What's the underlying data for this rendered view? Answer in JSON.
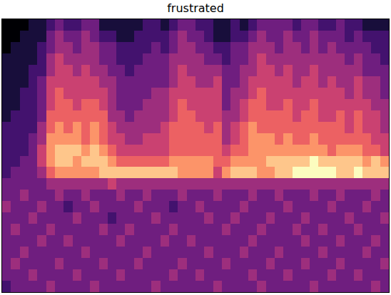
{
  "chart_data": {
    "type": "heatmap",
    "title": "frustrated",
    "tick_labels": false,
    "cells": [
      [
        0,
        0,
        0,
        1,
        1,
        2,
        3,
        2,
        2,
        3,
        3,
        1,
        1,
        1,
        1,
        1,
        2,
        2,
        1,
        2,
        3,
        3,
        2,
        2,
        1,
        1,
        2,
        1,
        2,
        3,
        3,
        3,
        3,
        2,
        3,
        3,
        2,
        2,
        3,
        2,
        2,
        1,
        1,
        1
      ],
      [
        0,
        0,
        1,
        1,
        1,
        3,
        4,
        3,
        3,
        4,
        3,
        2,
        2,
        1,
        1,
        2,
        2,
        2,
        2,
        3,
        4,
        3,
        3,
        2,
        1,
        1,
        2,
        2,
        3,
        4,
        3,
        3,
        4,
        3,
        3,
        4,
        3,
        3,
        3,
        2,
        3,
        2,
        2,
        2
      ],
      [
        0,
        1,
        1,
        1,
        2,
        3,
        4,
        4,
        3,
        4,
        4,
        3,
        3,
        2,
        2,
        2,
        2,
        3,
        2,
        3,
        4,
        4,
        3,
        3,
        2,
        2,
        3,
        3,
        4,
        4,
        4,
        3,
        4,
        4,
        3,
        4,
        3,
        4,
        3,
        3,
        3,
        3,
        2,
        2
      ],
      [
        1,
        1,
        1,
        1,
        2,
        4,
        5,
        4,
        4,
        4,
        4,
        3,
        3,
        2,
        2,
        2,
        3,
        3,
        3,
        4,
        4,
        4,
        4,
        3,
        3,
        2,
        3,
        3,
        4,
        5,
        4,
        4,
        4,
        4,
        4,
        4,
        4,
        4,
        4,
        3,
        4,
        3,
        3,
        2
      ],
      [
        1,
        1,
        1,
        2,
        2,
        4,
        5,
        5,
        4,
        5,
        4,
        4,
        3,
        3,
        2,
        3,
        3,
        3,
        3,
        4,
        5,
        4,
        4,
        4,
        4,
        3,
        3,
        4,
        4,
        5,
        5,
        4,
        5,
        4,
        4,
        5,
        4,
        4,
        4,
        4,
        4,
        3,
        3,
        3
      ],
      [
        1,
        1,
        1,
        2,
        3,
        5,
        5,
        5,
        5,
        5,
        5,
        4,
        4,
        3,
        3,
        3,
        3,
        3,
        3,
        4,
        5,
        5,
        4,
        4,
        5,
        3,
        3,
        4,
        5,
        5,
        5,
        5,
        5,
        4,
        5,
        5,
        4,
        5,
        4,
        4,
        5,
        4,
        4,
        3
      ],
      [
        1,
        1,
        2,
        2,
        3,
        5,
        6,
        5,
        5,
        5,
        5,
        5,
        4,
        3,
        3,
        3,
        3,
        4,
        4,
        5,
        5,
        5,
        5,
        5,
        5,
        3,
        4,
        4,
        5,
        6,
        5,
        5,
        5,
        5,
        5,
        5,
        5,
        5,
        5,
        4,
        5,
        4,
        4,
        3
      ],
      [
        1,
        1,
        2,
        2,
        3,
        5,
        6,
        6,
        5,
        6,
        6,
        5,
        4,
        3,
        3,
        3,
        4,
        4,
        4,
        5,
        6,
        5,
        5,
        5,
        5,
        3,
        4,
        5,
        6,
        6,
        5,
        5,
        6,
        5,
        5,
        6,
        5,
        5,
        5,
        5,
        5,
        5,
        4,
        4
      ],
      [
        1,
        2,
        2,
        2,
        3,
        6,
        6,
        6,
        6,
        6,
        6,
        6,
        4,
        4,
        3,
        4,
        4,
        4,
        4,
        5,
        6,
        6,
        5,
        5,
        5,
        4,
        4,
        5,
        6,
        6,
        6,
        6,
        6,
        5,
        6,
        6,
        5,
        5,
        6,
        5,
        6,
        5,
        5,
        4
      ],
      [
        2,
        2,
        2,
        2,
        4,
        6,
        7,
        6,
        7,
        6,
        7,
        6,
        5,
        4,
        4,
        4,
        4,
        4,
        5,
        6,
        6,
        6,
        6,
        5,
        6,
        4,
        5,
        6,
        7,
        6,
        6,
        6,
        6,
        6,
        6,
        6,
        6,
        6,
        6,
        5,
        6,
        5,
        5,
        4
      ],
      [
        2,
        2,
        2,
        3,
        4,
        7,
        7,
        7,
        7,
        6,
        7,
        6,
        5,
        5,
        4,
        4,
        5,
        5,
        5,
        6,
        6,
        6,
        6,
        6,
        6,
        4,
        5,
        6,
        7,
        7,
        7,
        6,
        7,
        6,
        6,
        7,
        6,
        6,
        6,
        6,
        6,
        6,
        5,
        5
      ],
      [
        2,
        2,
        2,
        3,
        5,
        7,
        8,
        8,
        8,
        7,
        8,
        7,
        6,
        5,
        5,
        5,
        5,
        5,
        5,
        6,
        6,
        6,
        6,
        6,
        6,
        5,
        6,
        6,
        7,
        7,
        7,
        7,
        7,
        7,
        7,
        7,
        7,
        6,
        7,
        7,
        7,
        6,
        6,
        5
      ],
      [
        2,
        2,
        3,
        3,
        5,
        7,
        8,
        8,
        7,
        8,
        8,
        8,
        7,
        6,
        6,
        6,
        6,
        6,
        6,
        7,
        7,
        7,
        7,
        7,
        6,
        6,
        7,
        7,
        7,
        7,
        8,
        8,
        8,
        8,
        8,
        9,
        8,
        8,
        8,
        8,
        8,
        7,
        8,
        7
      ],
      [
        2,
        3,
        3,
        3,
        4,
        6,
        7,
        7,
        7,
        7,
        7,
        8,
        8,
        8,
        8,
        8,
        8,
        8,
        8,
        8,
        7,
        7,
        7,
        7,
        5,
        7,
        8,
        8,
        8,
        7,
        7,
        8,
        8,
        9,
        9,
        9,
        9,
        9,
        8,
        8,
        9,
        8,
        8,
        8
      ],
      [
        3,
        3,
        3,
        3,
        3,
        4,
        4,
        4,
        4,
        4,
        4,
        4,
        5,
        4,
        4,
        4,
        4,
        4,
        4,
        4,
        4,
        4,
        4,
        4,
        4,
        4,
        4,
        4,
        4,
        4,
        4,
        4,
        4,
        4,
        4,
        4,
        4,
        4,
        4,
        4,
        4,
        4,
        4,
        4
      ],
      [
        3,
        3,
        4,
        3,
        3,
        3,
        4,
        3,
        3,
        4,
        3,
        3,
        3,
        4,
        3,
        3,
        4,
        3,
        3,
        3,
        4,
        3,
        3,
        3,
        4,
        3,
        3,
        3,
        4,
        3,
        3,
        4,
        3,
        3,
        3,
        4,
        3,
        3,
        4,
        3,
        3,
        3,
        4,
        3
      ],
      [
        4,
        3,
        3,
        3,
        4,
        3,
        3,
        2,
        3,
        3,
        4,
        3,
        3,
        3,
        3,
        4,
        3,
        3,
        3,
        2,
        3,
        3,
        4,
        3,
        3,
        3,
        3,
        4,
        3,
        3,
        3,
        3,
        4,
        3,
        3,
        3,
        3,
        4,
        3,
        3,
        3,
        4,
        3,
        3
      ],
      [
        3,
        3,
        3,
        4,
        3,
        3,
        3,
        3,
        4,
        3,
        3,
        3,
        2,
        3,
        3,
        3,
        3,
        4,
        3,
        3,
        3,
        3,
        3,
        4,
        3,
        3,
        4,
        3,
        3,
        3,
        4,
        3,
        3,
        3,
        4,
        3,
        3,
        3,
        3,
        4,
        3,
        3,
        3,
        4
      ],
      [
        3,
        4,
        3,
        3,
        3,
        4,
        3,
        3,
        3,
        3,
        3,
        4,
        3,
        3,
        4,
        3,
        3,
        3,
        3,
        4,
        3,
        3,
        3,
        3,
        3,
        4,
        3,
        3,
        3,
        4,
        3,
        3,
        3,
        4,
        3,
        3,
        4,
        3,
        3,
        3,
        4,
        3,
        3,
        3
      ],
      [
        3,
        3,
        3,
        3,
        4,
        3,
        3,
        4,
        3,
        3,
        3,
        3,
        3,
        4,
        3,
        3,
        3,
        3,
        4,
        3,
        3,
        4,
        3,
        3,
        3,
        3,
        3,
        3,
        4,
        3,
        3,
        3,
        3,
        3,
        4,
        3,
        3,
        3,
        4,
        3,
        3,
        3,
        4,
        3
      ],
      [
        3,
        3,
        4,
        3,
        3,
        3,
        3,
        3,
        3,
        4,
        3,
        3,
        3,
        3,
        3,
        3,
        4,
        3,
        3,
        3,
        3,
        3,
        3,
        4,
        3,
        3,
        3,
        4,
        3,
        3,
        3,
        4,
        3,
        3,
        3,
        3,
        4,
        3,
        3,
        3,
        3,
        4,
        3,
        3
      ],
      [
        3,
        4,
        3,
        3,
        3,
        3,
        4,
        3,
        3,
        3,
        3,
        4,
        3,
        3,
        3,
        4,
        3,
        3,
        3,
        3,
        4,
        3,
        3,
        3,
        3,
        4,
        3,
        3,
        3,
        3,
        4,
        3,
        3,
        3,
        4,
        3,
        3,
        3,
        4,
        3,
        3,
        3,
        3,
        4
      ],
      [
        3,
        3,
        3,
        4,
        3,
        3,
        3,
        3,
        4,
        3,
        3,
        3,
        3,
        4,
        3,
        3,
        3,
        3,
        3,
        4,
        3,
        3,
        4,
        3,
        3,
        3,
        3,
        3,
        4,
        3,
        3,
        3,
        4,
        3,
        3,
        3,
        3,
        4,
        3,
        3,
        4,
        3,
        3,
        3
      ],
      [
        2,
        3,
        3,
        3,
        3,
        4,
        3,
        3,
        3,
        3,
        4,
        3,
        3,
        3,
        3,
        3,
        3,
        4,
        3,
        3,
        3,
        3,
        3,
        3,
        4,
        3,
        3,
        3,
        3,
        4,
        3,
        3,
        3,
        3,
        3,
        4,
        3,
        3,
        3,
        3,
        3,
        3,
        4,
        3
      ]
    ]
  }
}
